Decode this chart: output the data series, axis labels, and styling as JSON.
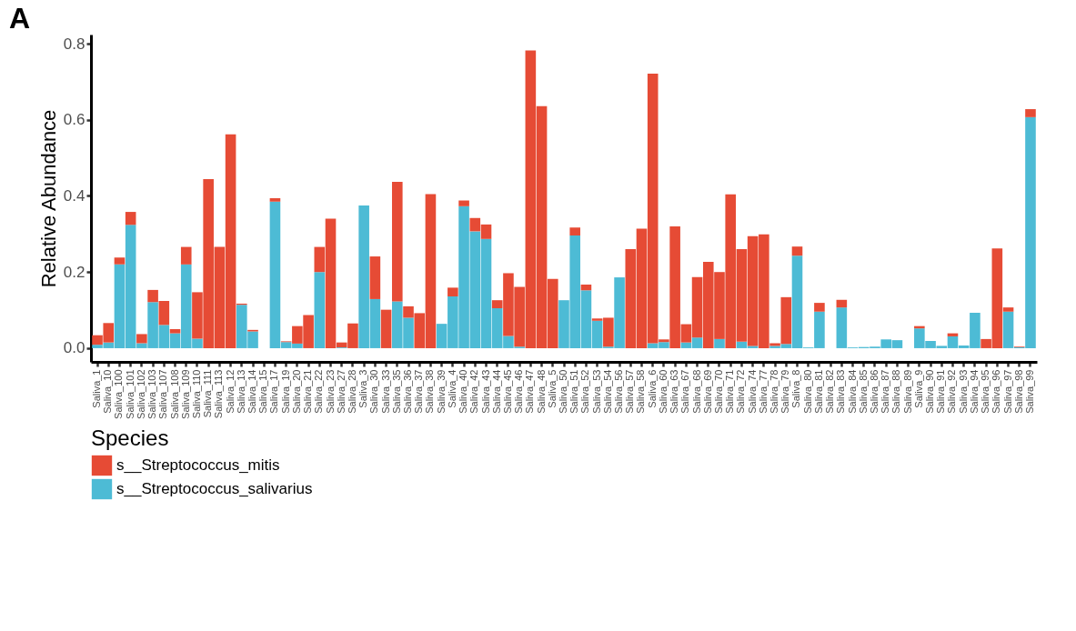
{
  "chart_data": {
    "type": "bar",
    "title": "A",
    "ylabel": "Relative Abundance",
    "legend_title": "Species",
    "legend": "bottom",
    "stacked": true,
    "grid": false,
    "categories": [
      "Saliva_1",
      "Saliva_10",
      "Saliva_100",
      "Saliva_101",
      "Saliva_102",
      "Saliva_103",
      "Saliva_107",
      "Saliva_108",
      "Saliva_109",
      "Saliva_110",
      "Saliva_111",
      "Saliva_113",
      "Saliva_12",
      "Saliva_13",
      "Saliva_14",
      "Saliva_15",
      "Saliva_17",
      "Saliva_19",
      "Saliva_20",
      "Saliva_21",
      "Saliva_22",
      "Saliva_23",
      "Saliva_27",
      "Saliva_28",
      "Saliva_3",
      "Saliva_30",
      "Saliva_33",
      "Saliva_35",
      "Saliva_36",
      "Saliva_37",
      "Saliva_38",
      "Saliva_39",
      "Saliva_4",
      "Saliva_40",
      "Saliva_42",
      "Saliva_43",
      "Saliva_44",
      "Saliva_45",
      "Saliva_46",
      "Saliva_47",
      "Saliva_48",
      "Saliva_5",
      "Saliva_50",
      "Saliva_51",
      "Saliva_52",
      "Saliva_53",
      "Saliva_54",
      "Saliva_56",
      "Saliva_57",
      "Saliva_58",
      "Saliva_6",
      "Saliva_60",
      "Saliva_63",
      "Saliva_67",
      "Saliva_68",
      "Saliva_69",
      "Saliva_70",
      "Saliva_71",
      "Saliva_72",
      "Saliva_74",
      "Saliva_77",
      "Saliva_78",
      "Saliva_79",
      "Saliva_8",
      "Saliva_80",
      "Saliva_81",
      "Saliva_82",
      "Saliva_83",
      "Saliva_84",
      "Saliva_85",
      "Saliva_86",
      "Saliva_87",
      "Saliva_88",
      "Saliva_89",
      "Saliva_9",
      "Saliva_90",
      "Saliva_91",
      "Saliva_92",
      "Saliva_93",
      "Saliva_94",
      "Saliva_95",
      "Saliva_96",
      "Saliva_97",
      "Saliva_98",
      "Saliva_99"
    ],
    "series": [
      {
        "name": "s__Streptococcus_salivarius",
        "color": "#4dbbd5",
        "values": [
          0.009,
          0.015,
          0.22,
          0.324,
          0.013,
          0.121,
          0.061,
          0.039,
          0.22,
          0.025,
          0,
          0,
          0,
          0.114,
          0.044,
          0,
          0.385,
          0.016,
          0.012,
          0,
          0.2,
          0,
          0.002,
          0,
          0.375,
          0.129,
          0,
          0.123,
          0.08,
          0,
          0,
          0.064,
          0.136,
          0.373,
          0.307,
          0.287,
          0.105,
          0.032,
          0.004,
          0,
          0,
          0,
          0.126,
          0.296,
          0.152,
          0.072,
          0.004,
          0.186,
          0,
          0,
          0.013,
          0.016,
          0,
          0.015,
          0.028,
          0,
          0.024,
          0,
          0.017,
          0.006,
          0,
          0.006,
          0.011,
          0.243,
          0.002,
          0.096,
          0,
          0.107,
          0.002,
          0.003,
          0.004,
          0.023,
          0.021,
          0,
          0.052,
          0.019,
          0.006,
          0.031,
          0.007,
          0.093,
          null,
          0,
          0.096,
          0.002,
          0.607
        ]
      },
      {
        "name": "s__Streptococcus_mitis",
        "color": "#e64b35",
        "values": [
          0.025,
          0.051,
          0.018,
          0.034,
          0.024,
          0.032,
          0.063,
          0.011,
          0.046,
          0.122,
          0.444,
          0.266,
          0.562,
          0.003,
          0.004,
          0,
          0.009,
          0.002,
          0.046,
          0.087,
          0.066,
          0.34,
          0.013,
          0.065,
          0,
          0.112,
          0.101,
          0.314,
          0.03,
          0.092,
          0.405,
          0,
          0.023,
          0.015,
          0.035,
          0.038,
          0.021,
          0.165,
          0.157,
          0.782,
          0.636,
          0.182,
          0,
          0.021,
          0.015,
          0.006,
          0.076,
          0,
          0.26,
          0.314,
          0.708,
          0.007,
          0.32,
          0.048,
          0.159,
          0.227,
          0.176,
          0.404,
          0.243,
          0.288,
          0.299,
          0.007,
          0.123,
          0.024,
          0,
          0.023,
          0,
          0.02,
          0,
          0,
          0,
          0,
          0,
          0,
          0.006,
          0,
          0,
          0.008,
          0,
          0,
          0.024,
          0.262,
          0.011,
          0.002,
          0.021
        ]
      }
    ],
    "ylim": [
      -0.036,
      0.824
    ],
    "yticks": [
      {
        "value": 0,
        "label": "0.0"
      },
      0.2,
      0.4,
      0.6,
      0.8
    ]
  }
}
